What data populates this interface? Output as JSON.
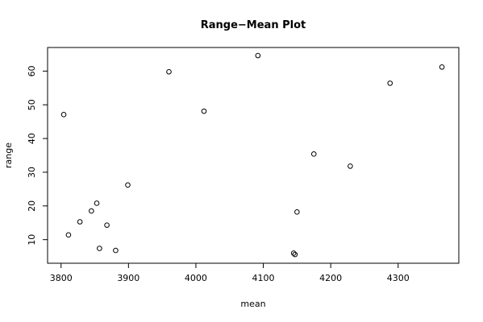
{
  "chart_data": {
    "type": "scatter",
    "title": "Range−Mean Plot",
    "xlabel": "mean",
    "ylabel": "range",
    "xlim": [
      3780,
      4390
    ],
    "ylim": [
      3,
      67
    ],
    "xticks": [
      3800,
      3900,
      4000,
      4100,
      4200,
      4300
    ],
    "yticks": [
      10,
      20,
      30,
      40,
      50,
      60
    ],
    "xtick_labels": [
      "3800",
      "3900",
      "4000",
      "4100",
      "4200",
      "4300"
    ],
    "ytick_labels": [
      "10",
      "20",
      "30",
      "40",
      "50",
      "60"
    ],
    "grid": false,
    "marker": "open-circle",
    "points": [
      {
        "x": 3804,
        "y": 47.1
      },
      {
        "x": 3811,
        "y": 11.4
      },
      {
        "x": 3828,
        "y": 15.3
      },
      {
        "x": 3845,
        "y": 18.5
      },
      {
        "x": 3853,
        "y": 20.8
      },
      {
        "x": 3857,
        "y": 7.4
      },
      {
        "x": 3868,
        "y": 14.3
      },
      {
        "x": 3881,
        "y": 6.8
      },
      {
        "x": 3899,
        "y": 26.2
      },
      {
        "x": 3960,
        "y": 59.8
      },
      {
        "x": 4012,
        "y": 48.1
      },
      {
        "x": 4092,
        "y": 64.6
      },
      {
        "x": 4145,
        "y": 6.0
      },
      {
        "x": 4147,
        "y": 5.6
      },
      {
        "x": 4150,
        "y": 18.2
      },
      {
        "x": 4175,
        "y": 35.4
      },
      {
        "x": 4229,
        "y": 31.8
      },
      {
        "x": 4288,
        "y": 56.4
      },
      {
        "x": 4365,
        "y": 61.2
      }
    ]
  }
}
